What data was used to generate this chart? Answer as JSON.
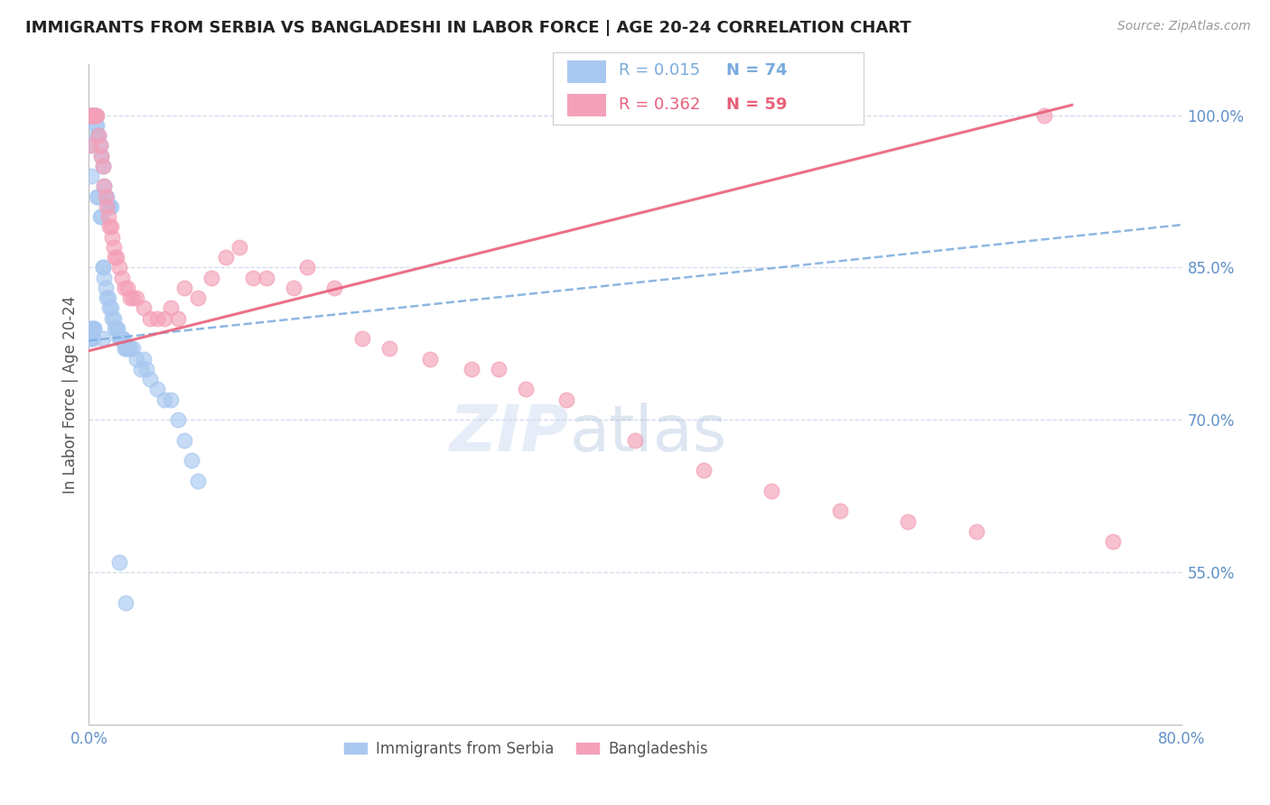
{
  "title": "IMMIGRANTS FROM SERBIA VS BANGLADESHI IN LABOR FORCE | AGE 20-24 CORRELATION CHART",
  "source": "Source: ZipAtlas.com",
  "ylabel": "In Labor Force | Age 20-24",
  "x_min": 0.0,
  "x_max": 0.8,
  "y_min": 0.4,
  "y_max": 1.05,
  "x_tick_positions": [
    0.0,
    0.1,
    0.2,
    0.3,
    0.4,
    0.5,
    0.6,
    0.7,
    0.8
  ],
  "x_tick_labels": [
    "0.0%",
    "",
    "",
    "",
    "",
    "",
    "",
    "",
    "80.0%"
  ],
  "y_ticks": [
    0.55,
    0.7,
    0.85,
    1.0
  ],
  "y_tick_labels": [
    "55.0%",
    "70.0%",
    "85.0%",
    "100.0%"
  ],
  "serbia_R": 0.015,
  "serbia_N": 74,
  "bangladeshi_R": 0.362,
  "bangladeshi_N": 59,
  "serbia_color": "#a8c8f0",
  "bangladeshi_color": "#f4a0b8",
  "serbia_line_color": "#7aaadd",
  "bangladeshi_line_color": "#e8607a",
  "grid_color": "#d0daea",
  "label_color": "#6090c8",
  "watermark_zip": "ZIP",
  "watermark_atlas": "atlas",
  "serbia_line_x": [
    0.0,
    0.8
  ],
  "serbia_line_y": [
    0.778,
    0.892
  ],
  "bangladeshi_line_x": [
    0.0,
    0.72
  ],
  "bangladeshi_line_y": [
    0.768,
    1.01
  ],
  "serbia_x": [
    0.001,
    0.001,
    0.001,
    0.002,
    0.002,
    0.002,
    0.003,
    0.003,
    0.004,
    0.004,
    0.005,
    0.005,
    0.006,
    0.006,
    0.006,
    0.007,
    0.007,
    0.008,
    0.008,
    0.009,
    0.009,
    0.01,
    0.01,
    0.01,
    0.011,
    0.011,
    0.012,
    0.012,
    0.013,
    0.013,
    0.014,
    0.014,
    0.015,
    0.015,
    0.016,
    0.016,
    0.017,
    0.018,
    0.019,
    0.02,
    0.021,
    0.022,
    0.023,
    0.024,
    0.025,
    0.026,
    0.027,
    0.028,
    0.029,
    0.03,
    0.032,
    0.035,
    0.038,
    0.04,
    0.042,
    0.045,
    0.05,
    0.055,
    0.06,
    0.065,
    0.07,
    0.075,
    0.08,
    0.001,
    0.001,
    0.002,
    0.002,
    0.003,
    0.003,
    0.004,
    0.004,
    0.01,
    0.022,
    0.027
  ],
  "serbia_y": [
    1.0,
    1.0,
    0.97,
    1.0,
    1.0,
    0.94,
    1.0,
    1.0,
    1.0,
    1.0,
    1.0,
    0.99,
    0.99,
    0.98,
    0.92,
    0.98,
    0.92,
    0.97,
    0.9,
    0.96,
    0.9,
    0.95,
    0.85,
    0.85,
    0.93,
    0.84,
    0.92,
    0.83,
    0.92,
    0.82,
    0.91,
    0.82,
    0.91,
    0.81,
    0.91,
    0.81,
    0.8,
    0.8,
    0.79,
    0.79,
    0.79,
    0.78,
    0.78,
    0.78,
    0.78,
    0.77,
    0.77,
    0.77,
    0.77,
    0.77,
    0.77,
    0.76,
    0.75,
    0.76,
    0.75,
    0.74,
    0.73,
    0.72,
    0.72,
    0.7,
    0.68,
    0.66,
    0.64,
    0.79,
    0.78,
    0.79,
    0.78,
    0.79,
    0.78,
    0.79,
    0.79,
    0.78,
    0.56,
    0.52
  ],
  "bangladeshi_x": [
    0.001,
    0.001,
    0.002,
    0.003,
    0.004,
    0.005,
    0.006,
    0.007,
    0.008,
    0.009,
    0.01,
    0.011,
    0.012,
    0.013,
    0.014,
    0.015,
    0.016,
    0.017,
    0.018,
    0.019,
    0.02,
    0.022,
    0.024,
    0.026,
    0.028,
    0.03,
    0.032,
    0.035,
    0.04,
    0.045,
    0.05,
    0.055,
    0.06,
    0.065,
    0.07,
    0.08,
    0.09,
    0.1,
    0.11,
    0.12,
    0.13,
    0.15,
    0.16,
    0.18,
    0.2,
    0.22,
    0.25,
    0.28,
    0.3,
    0.32,
    0.35,
    0.4,
    0.45,
    0.5,
    0.55,
    0.6,
    0.65,
    0.7,
    0.75
  ],
  "bangladeshi_y": [
    1.0,
    0.97,
    1.0,
    1.0,
    1.0,
    1.0,
    1.0,
    0.98,
    0.97,
    0.96,
    0.95,
    0.93,
    0.92,
    0.91,
    0.9,
    0.89,
    0.89,
    0.88,
    0.87,
    0.86,
    0.86,
    0.85,
    0.84,
    0.83,
    0.83,
    0.82,
    0.82,
    0.82,
    0.81,
    0.8,
    0.8,
    0.8,
    0.81,
    0.8,
    0.83,
    0.82,
    0.84,
    0.86,
    0.87,
    0.84,
    0.84,
    0.83,
    0.85,
    0.83,
    0.78,
    0.77,
    0.76,
    0.75,
    0.75,
    0.73,
    0.72,
    0.68,
    0.65,
    0.63,
    0.61,
    0.6,
    0.59,
    1.0,
    0.58
  ]
}
